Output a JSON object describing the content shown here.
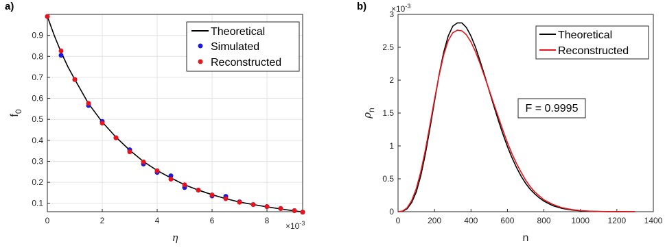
{
  "chart_data": [
    {
      "type": "scatter",
      "panel_label": "a)",
      "xlabel": "η",
      "ylabel": "f",
      "ylabel_sub": "0",
      "x_multiplier": "×10",
      "x_multiplier_exp": "-3",
      "xlim": [
        0,
        9.3
      ],
      "ylim": [
        0.06,
        1.0
      ],
      "x_ticks": [
        "0",
        "2",
        "4",
        "6",
        "8"
      ],
      "x_tick_values": [
        0,
        2,
        4,
        6,
        8
      ],
      "y_ticks": [
        "0.1",
        "0.2",
        "0.3",
        "0.4",
        "0.5",
        "0.6",
        "0.7",
        "0.8",
        "0.9"
      ],
      "y_tick_values": [
        0.1,
        0.2,
        0.3,
        0.4,
        0.5,
        0.6,
        0.7,
        0.8,
        0.9
      ],
      "grid": true,
      "legend_position": "top-right",
      "line_x": [
        0,
        0.25,
        0.5,
        0.75,
        1,
        1.5,
        2,
        2.5,
        3,
        3.5,
        4,
        4.5,
        5,
        5.5,
        6,
        6.5,
        7,
        7.5,
        8,
        8.5,
        9,
        9.3
      ],
      "line_y": [
        0.99,
        0.9,
        0.82,
        0.75,
        0.69,
        0.575,
        0.487,
        0.415,
        0.353,
        0.299,
        0.256,
        0.221,
        0.188,
        0.163,
        0.141,
        0.122,
        0.106,
        0.094,
        0.083,
        0.073,
        0.064,
        0.059
      ],
      "series": [
        {
          "name": "Theoretical",
          "style": "line",
          "color": "#000000"
        },
        {
          "name": "Simulated",
          "style": "marker",
          "color": "#1a1adb",
          "x": [
            0,
            0.5,
            1,
            1.5,
            2,
            2.5,
            3,
            3.5,
            4,
            4.5,
            5,
            5.5,
            6,
            6.5,
            7,
            7.5,
            8,
            8.5,
            9,
            9.3
          ],
          "y": [
            0.99,
            0.805,
            0.69,
            0.566,
            0.49,
            0.412,
            0.355,
            0.287,
            0.247,
            0.231,
            0.175,
            0.163,
            0.135,
            0.133,
            0.107,
            0.094,
            0.084,
            0.075,
            0.065,
            0.058
          ]
        },
        {
          "name": "Reconstructed",
          "style": "marker",
          "color": "#e8141c",
          "x": [
            0,
            0.5,
            1,
            1.5,
            2,
            2.5,
            3,
            3.5,
            4,
            4.5,
            5,
            5.5,
            6,
            6.5,
            7,
            7.5,
            8,
            8.5,
            9,
            9.3
          ],
          "y": [
            0.99,
            0.826,
            0.69,
            0.576,
            0.482,
            0.412,
            0.345,
            0.297,
            0.255,
            0.215,
            0.188,
            0.163,
            0.14,
            0.122,
            0.105,
            0.094,
            0.084,
            0.075,
            0.065,
            0.058
          ]
        }
      ]
    },
    {
      "type": "line",
      "panel_label": "b)",
      "xlabel": "n",
      "ylabel": "ρ",
      "ylabel_sub": "n",
      "y_multiplier": "×10",
      "y_multiplier_exp": "-3",
      "xlim": [
        0,
        1400
      ],
      "ylim": [
        0,
        3
      ],
      "x_ticks": [
        "0",
        "200",
        "400",
        "600",
        "800",
        "1000",
        "1200",
        "1400"
      ],
      "x_tick_values": [
        0,
        200,
        400,
        600,
        800,
        1000,
        1200,
        1400
      ],
      "y_ticks": [
        "0",
        "0.5",
        "1",
        "1.5",
        "2",
        "2.5",
        "3"
      ],
      "y_tick_values": [
        0,
        0.5,
        1,
        1.5,
        2,
        2.5,
        3
      ],
      "grid": false,
      "legend_position": "top-right",
      "annotation": "F = 0.9995",
      "x": [
        0,
        25,
        50,
        75,
        100,
        125,
        150,
        175,
        200,
        225,
        250,
        275,
        300,
        325,
        350,
        375,
        400,
        425,
        450,
        475,
        500,
        525,
        550,
        575,
        600,
        625,
        650,
        675,
        700,
        725,
        750,
        775,
        800,
        850,
        900,
        950,
        1000,
        1050,
        1100,
        1150,
        1200,
        1250,
        1300
      ],
      "series": [
        {
          "name": "Theoretical",
          "color": "#000000",
          "values": [
            0,
            0.006,
            0.045,
            0.14,
            0.3,
            0.55,
            0.88,
            1.27,
            1.68,
            2.08,
            2.42,
            2.67,
            2.82,
            2.87,
            2.87,
            2.8,
            2.67,
            2.5,
            2.29,
            2.07,
            1.84,
            1.61,
            1.39,
            1.18,
            0.99,
            0.82,
            0.67,
            0.54,
            0.43,
            0.34,
            0.27,
            0.21,
            0.16,
            0.09,
            0.05,
            0.026,
            0.013,
            0.006,
            0.003,
            0.001,
            0.0005,
            0.0002,
            0
          ]
        },
        {
          "name": "Reconstructed",
          "color": "#e8141c",
          "values": [
            0,
            0.01,
            0.06,
            0.17,
            0.35,
            0.61,
            0.94,
            1.32,
            1.71,
            2.07,
            2.38,
            2.6,
            2.72,
            2.76,
            2.75,
            2.69,
            2.58,
            2.43,
            2.25,
            2.05,
            1.85,
            1.64,
            1.44,
            1.24,
            1.05,
            0.88,
            0.73,
            0.6,
            0.48,
            0.38,
            0.3,
            0.24,
            0.18,
            0.11,
            0.06,
            0.033,
            0.017,
            0.008,
            0.004,
            0.002,
            0.001,
            0.0004,
            0
          ]
        }
      ]
    }
  ]
}
